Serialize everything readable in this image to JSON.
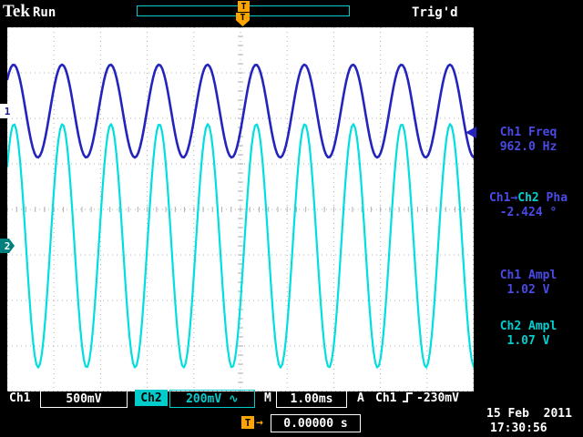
{
  "header": {
    "logo": "Tek",
    "acquisition_state": "Run",
    "trigger_status": "Trig'd",
    "trigger_marker": "T"
  },
  "measurements": [
    {
      "label": "Ch1 Freq",
      "value": "962.0 Hz"
    },
    {
      "label_a": "Ch1→",
      "label_b": "Ch2",
      "label_c": " Pha",
      "value": "-2.424 °"
    },
    {
      "label": "Ch1 Ampl",
      "value": "1.02 V"
    },
    {
      "label": "Ch2 Ampl",
      "value": "1.07 V"
    }
  ],
  "channel_markers": {
    "ch1": "1",
    "ch2": "2"
  },
  "status_bar": {
    "ch1_label": "Ch1",
    "ch1_scale": "500mV",
    "ch2_label": "Ch2",
    "ch2_scale": "200mV",
    "ch2_coupling_symbol": "∿",
    "timebase_label": "M",
    "timebase_value": "1.00ms",
    "trigger_mode_label": "A",
    "trigger_source": "Ch1",
    "trigger_level": "-230mV"
  },
  "footer": {
    "trigger_marker": "T",
    "trigger_arrow": "→",
    "trigger_position": "0.00000 s",
    "date": "15 Feb  2011",
    "time": "17:30:56"
  },
  "colors": {
    "ch1_trace": "#2424bc",
    "ch1_text": "#4a4ae6",
    "ch2_trace": "#00dede",
    "ch2_text": "#00cfcf",
    "accent_orange": "#ffa500",
    "graticule_bg": "#ffffff",
    "grid_dots": "#b0b0b0"
  },
  "chart_data": {
    "type": "line",
    "title": "Oscilloscope traces",
    "x_axis": {
      "divisions": 10,
      "s_per_div": 0.001,
      "label": "1.00ms/div"
    },
    "y_axis": {
      "divisions": 8
    },
    "phase_at_center_rad": -0.44,
    "trigger": {
      "source": "Ch1",
      "level_mv": -230,
      "slope": "rising",
      "position_s": 0.0
    },
    "series": [
      {
        "name": "Ch1",
        "color": "#2424bc",
        "volts_per_div": 0.5,
        "amplitude_vpp": 1.02,
        "frequency_hz": 962.0,
        "phase_deg": 0,
        "center_div_from_top": 1.84
      },
      {
        "name": "Ch2",
        "color": "#00dede",
        "volts_per_div": 0.2,
        "amplitude_vpp": 1.07,
        "frequency_hz": 962.0,
        "phase_deg": -2.424,
        "center_div_from_top": 4.8
      }
    ]
  }
}
